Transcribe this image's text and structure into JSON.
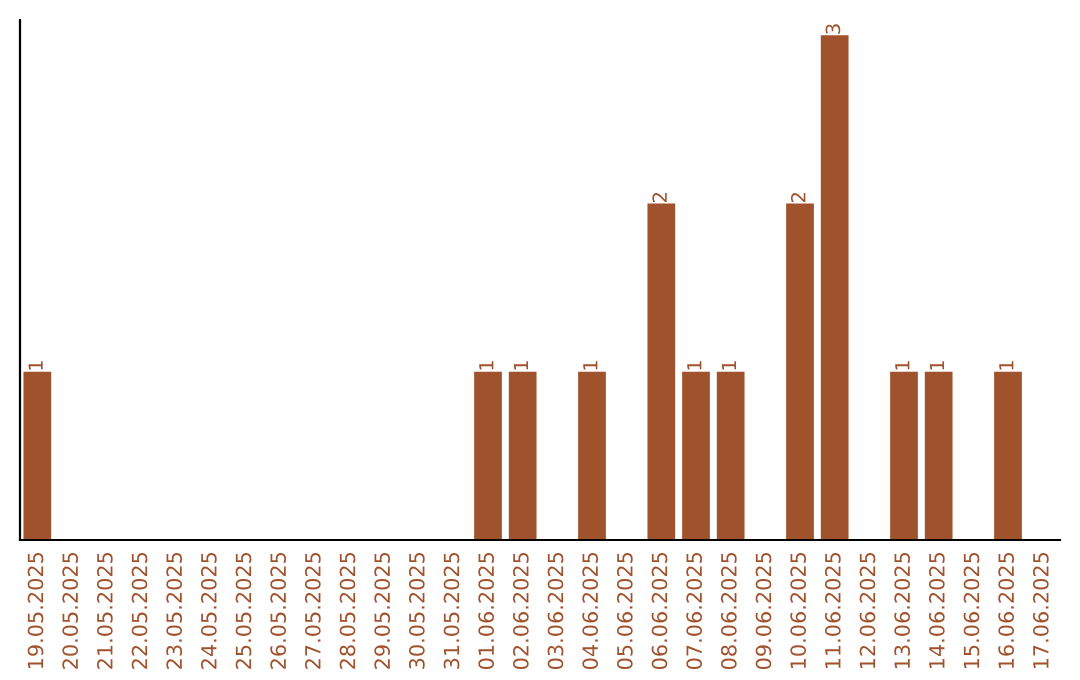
{
  "chart_data": {
    "type": "bar",
    "categories": [
      "19.05.2025",
      "20.05.2025",
      "21.05.2025",
      "22.05.2025",
      "23.05.2025",
      "24.05.2025",
      "25.05.2025",
      "26.05.2025",
      "27.05.2025",
      "28.05.2025",
      "29.05.2025",
      "30.05.2025",
      "31.05.2025",
      "01.06.2025",
      "02.06.2025",
      "03.06.2025",
      "04.06.2025",
      "05.06.2025",
      "06.06.2025",
      "07.06.2025",
      "08.06.2025",
      "09.06.2025",
      "10.06.2025",
      "11.06.2025",
      "12.06.2025",
      "13.06.2025",
      "14.06.2025",
      "15.06.2025",
      "16.06.2025",
      "17.06.2025"
    ],
    "values": [
      1,
      0,
      0,
      0,
      0,
      0,
      0,
      0,
      0,
      0,
      0,
      0,
      0,
      1,
      1,
      0,
      1,
      0,
      2,
      1,
      1,
      0,
      2,
      3,
      0,
      1,
      1,
      0,
      1,
      0
    ],
    "color": "#a0522d",
    "value_labels": [
      "1",
      null,
      null,
      null,
      null,
      null,
      null,
      null,
      null,
      null,
      null,
      null,
      null,
      "1",
      "1",
      null,
      "1",
      null,
      "2",
      "1",
      "1",
      null,
      "2",
      "3",
      null,
      "1",
      "1",
      null,
      "1",
      null
    ],
    "tick_labels": "x",
    "grid": false,
    "legend": false
  }
}
